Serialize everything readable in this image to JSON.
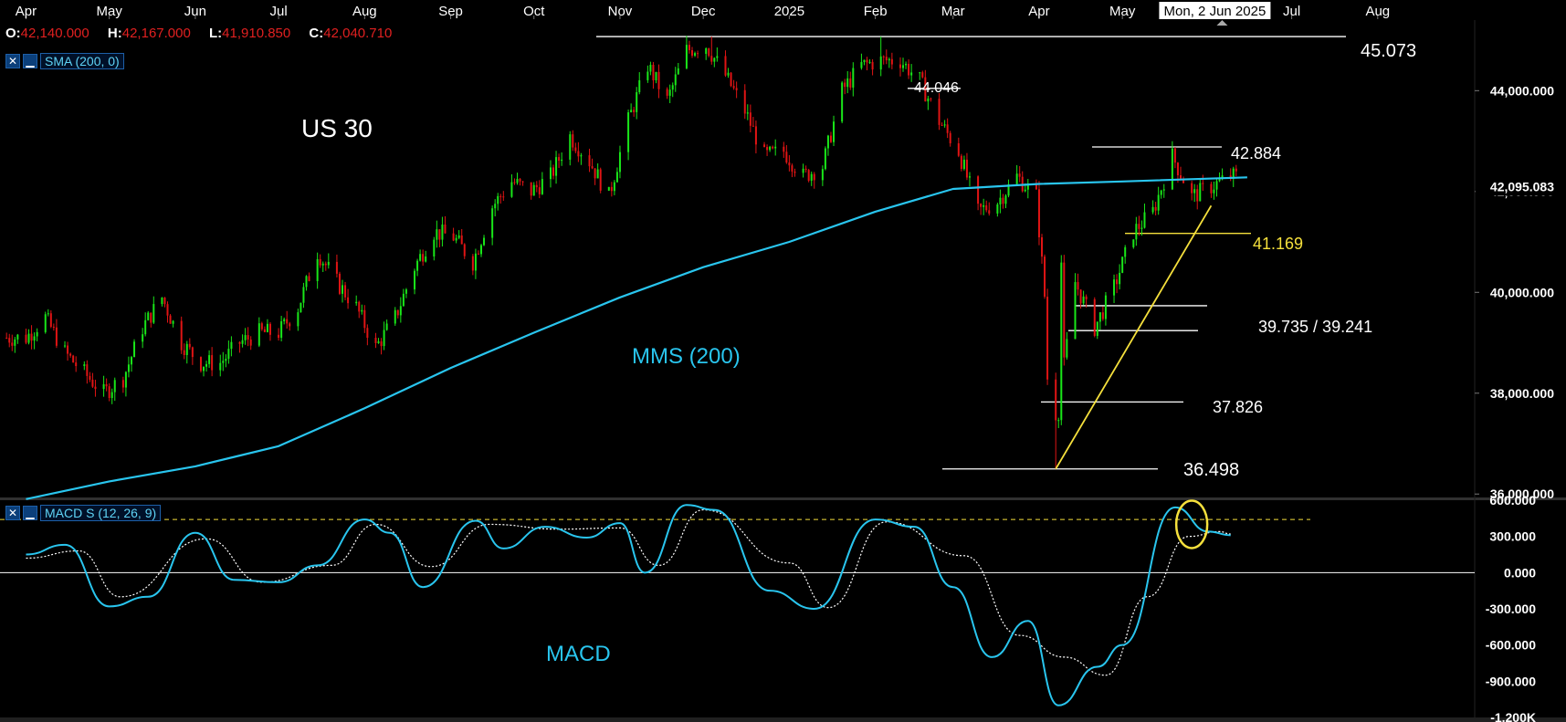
{
  "ohlc": {
    "o_label": "O:",
    "o_value": "42,140.000",
    "h_label": "H:",
    "h_value": "42,167.000",
    "l_label": "L:",
    "l_value": "41,910.850",
    "c_label": "C:",
    "c_value": "42,040.710"
  },
  "indicators": {
    "sma_label": "SMA (200, 0)",
    "macd_label": "MACD S (12, 26, 9)",
    "close_icon": "close-x-icon",
    "minimize_icon": "minimize-icon"
  },
  "crosshair": {
    "date_label": "Mon, 2 Jun 2025"
  },
  "colors": {
    "background": "#000000",
    "up_candle": "#19e619",
    "down_candle": "#e01414",
    "sma": "#29c5ee",
    "macd_line": "#29c5ee",
    "signal_line": "#ffffff",
    "trendline": "#f5e03c",
    "ohlc_value": "#e02020"
  },
  "chart_data": [
    {
      "type": "candlestick",
      "symbol": "US 30",
      "time_axis_labels": [
        "Apr",
        "May",
        "Jun",
        "Jul",
        "Aug",
        "Sep",
        "Oct",
        "Nov",
        "Dec",
        "2025",
        "Feb",
        "Mar",
        "Apr",
        "May",
        "Jul",
        "Aug"
      ],
      "y_tick_labels": [
        "44,000.000",
        "42,000.000",
        "40,000.000",
        "38,000.000",
        "36,000.000"
      ],
      "ylim": [
        35950,
        45400
      ],
      "last_price_label": "42,095.083",
      "annotation_texts": {
        "chart_title": "US 30",
        "sma_name": "MMS (200)",
        "level_45073": "45.073",
        "level_44046": "44.046",
        "level_42884": "42.884",
        "level_41169": "41.169",
        "level_39735_39241": "39.735 / 39.241",
        "level_37826": "37.826",
        "level_36498": "36.498"
      },
      "levels": [
        {
          "label": "45.073",
          "value": 45073
        },
        {
          "label": "44.046",
          "value": 44046
        },
        {
          "label": "42.884",
          "value": 42884
        },
        {
          "label": "41.169",
          "value": 41169,
          "highlight": true
        },
        {
          "label": "39.735",
          "value": 39735
        },
        {
          "label": "39.241",
          "value": 39241
        },
        {
          "label": "37.826",
          "value": 37826
        },
        {
          "label": "36.498",
          "value": 36498
        }
      ],
      "close_path": [
        [
          "2024-04-01",
          39100
        ],
        [
          "2024-04-08",
          39500
        ],
        [
          "2024-04-15",
          38800
        ],
        [
          "2024-04-22",
          38400
        ],
        [
          "2024-04-29",
          38000
        ],
        [
          "2024-05-06",
          38300
        ],
        [
          "2024-05-13",
          39300
        ],
        [
          "2024-05-20",
          39900
        ],
        [
          "2024-05-27",
          39000
        ],
        [
          "2024-06-03",
          38600
        ],
        [
          "2024-06-10",
          38600
        ],
        [
          "2024-06-17",
          39000
        ],
        [
          "2024-06-24",
          39200
        ],
        [
          "2024-07-01",
          39200
        ],
        [
          "2024-07-08",
          39700
        ],
        [
          "2024-07-15",
          40800
        ],
        [
          "2024-07-22",
          40200
        ],
        [
          "2024-07-29",
          39700
        ],
        [
          "2024-08-05",
          38900
        ],
        [
          "2024-08-12",
          39500
        ],
        [
          "2024-08-19",
          40500
        ],
        [
          "2024-08-26",
          41200
        ],
        [
          "2024-09-02",
          41100
        ],
        [
          "2024-09-09",
          40600
        ],
        [
          "2024-09-16",
          41700
        ],
        [
          "2024-09-23",
          42200
        ],
        [
          "2024-09-30",
          42000
        ],
        [
          "2024-10-07",
          42300
        ],
        [
          "2024-10-14",
          43100
        ],
        [
          "2024-10-21",
          42600
        ],
        [
          "2024-10-28",
          41900
        ],
        [
          "2024-11-04",
          43400
        ],
        [
          "2024-11-11",
          44500
        ],
        [
          "2024-11-18",
          43800
        ],
        [
          "2024-11-25",
          44800
        ],
        [
          "2024-12-02",
          44900
        ],
        [
          "2024-12-09",
          44300
        ],
        [
          "2024-12-16",
          43600
        ],
        [
          "2024-12-23",
          42700
        ],
        [
          "2024-12-30",
          42800
        ],
        [
          "2025-01-06",
          42300
        ],
        [
          "2025-01-13",
          42500
        ],
        [
          "2025-01-20",
          44000
        ],
        [
          "2025-01-27",
          44500
        ],
        [
          "2025-02-03",
          44600
        ],
        [
          "2025-02-10",
          44600
        ],
        [
          "2025-02-17",
          44200
        ],
        [
          "2025-02-24",
          43400
        ],
        [
          "2025-03-03",
          42800
        ],
        [
          "2025-03-10",
          41600
        ],
        [
          "2025-03-17",
          41800
        ],
        [
          "2025-03-24",
          42300
        ],
        [
          "2025-03-31",
          41900
        ],
        [
          "2025-04-07",
          37300
        ],
        [
          "2025-04-14",
          40200
        ],
        [
          "2025-04-21",
          39300
        ],
        [
          "2025-04-28",
          40100
        ],
        [
          "2025-05-05",
          41200
        ],
        [
          "2025-05-12",
          41600
        ],
        [
          "2025-05-19",
          42700
        ],
        [
          "2025-05-26",
          41900
        ],
        [
          "2025-06-02",
          42100
        ],
        [
          "2025-06-09",
          42300
        ]
      ],
      "sma_200": [
        [
          "2024-04-01",
          35900
        ],
        [
          "2024-05-01",
          36250
        ],
        [
          "2024-06-01",
          36550
        ],
        [
          "2024-07-01",
          36950
        ],
        [
          "2024-08-01",
          37700
        ],
        [
          "2024-09-01",
          38500
        ],
        [
          "2024-10-01",
          39200
        ],
        [
          "2024-11-01",
          39900
        ],
        [
          "2024-12-01",
          40500
        ],
        [
          "2025-01-01",
          41000
        ],
        [
          "2025-02-01",
          41600
        ],
        [
          "2025-03-01",
          42050
        ],
        [
          "2025-04-01",
          42150
        ],
        [
          "2025-05-01",
          42200
        ],
        [
          "2025-06-15",
          42280
        ]
      ]
    },
    {
      "type": "line",
      "name": "MACD",
      "y_tick_labels": [
        "600.000",
        "300.000",
        "0.000",
        "-300.000",
        "-600.000",
        "-900.000",
        "-1.200K"
      ],
      "ylim": [
        -1200,
        600
      ],
      "annotation_texts": {
        "panel_title": "MACD"
      },
      "overbought_level": 440,
      "macd_line": [
        [
          "2024-04-01",
          150
        ],
        [
          "2024-04-15",
          230
        ],
        [
          "2024-05-01",
          -280
        ],
        [
          "2024-05-15",
          -200
        ],
        [
          "2024-06-01",
          330
        ],
        [
          "2024-06-15",
          -60
        ],
        [
          "2024-07-01",
          -80
        ],
        [
          "2024-07-15",
          60
        ],
        [
          "2024-08-01",
          440
        ],
        [
          "2024-08-10",
          330
        ],
        [
          "2024-08-22",
          -120
        ],
        [
          "2024-09-10",
          430
        ],
        [
          "2024-09-20",
          200
        ],
        [
          "2024-10-05",
          380
        ],
        [
          "2024-10-20",
          290
        ],
        [
          "2024-11-01",
          410
        ],
        [
          "2024-11-10",
          0
        ],
        [
          "2024-11-25",
          560
        ],
        [
          "2024-12-05",
          520
        ],
        [
          "2024-12-25",
          -150
        ],
        [
          "2025-01-10",
          -300
        ],
        [
          "2025-02-01",
          440
        ],
        [
          "2025-02-15",
          380
        ],
        [
          "2025-03-01",
          -120
        ],
        [
          "2025-03-15",
          -700
        ],
        [
          "2025-03-28",
          -400
        ],
        [
          "2025-04-08",
          -1100
        ],
        [
          "2025-04-22",
          -780
        ],
        [
          "2025-05-01",
          -600
        ],
        [
          "2025-05-20",
          540
        ],
        [
          "2025-06-01",
          340
        ],
        [
          "2025-06-09",
          310
        ]
      ],
      "signal_line": [
        [
          "2024-04-01",
          120
        ],
        [
          "2024-04-20",
          180
        ],
        [
          "2024-05-05",
          -200
        ],
        [
          "2024-06-05",
          280
        ],
        [
          "2024-06-25",
          -80
        ],
        [
          "2024-07-20",
          60
        ],
        [
          "2024-08-05",
          400
        ],
        [
          "2024-08-25",
          50
        ],
        [
          "2024-09-15",
          400
        ],
        [
          "2024-10-10",
          360
        ],
        [
          "2024-11-01",
          370
        ],
        [
          "2024-11-15",
          60
        ],
        [
          "2024-12-01",
          520
        ],
        [
          "2025-01-01",
          80
        ],
        [
          "2025-01-15",
          -290
        ],
        [
          "2025-02-05",
          420
        ],
        [
          "2025-03-05",
          140
        ],
        [
          "2025-03-25",
          -520
        ],
        [
          "2025-04-10",
          -700
        ],
        [
          "2025-04-25",
          -850
        ],
        [
          "2025-05-10",
          -200
        ],
        [
          "2025-05-25",
          300
        ],
        [
          "2025-06-05",
          340
        ],
        [
          "2025-06-09",
          320
        ]
      ]
    }
  ]
}
